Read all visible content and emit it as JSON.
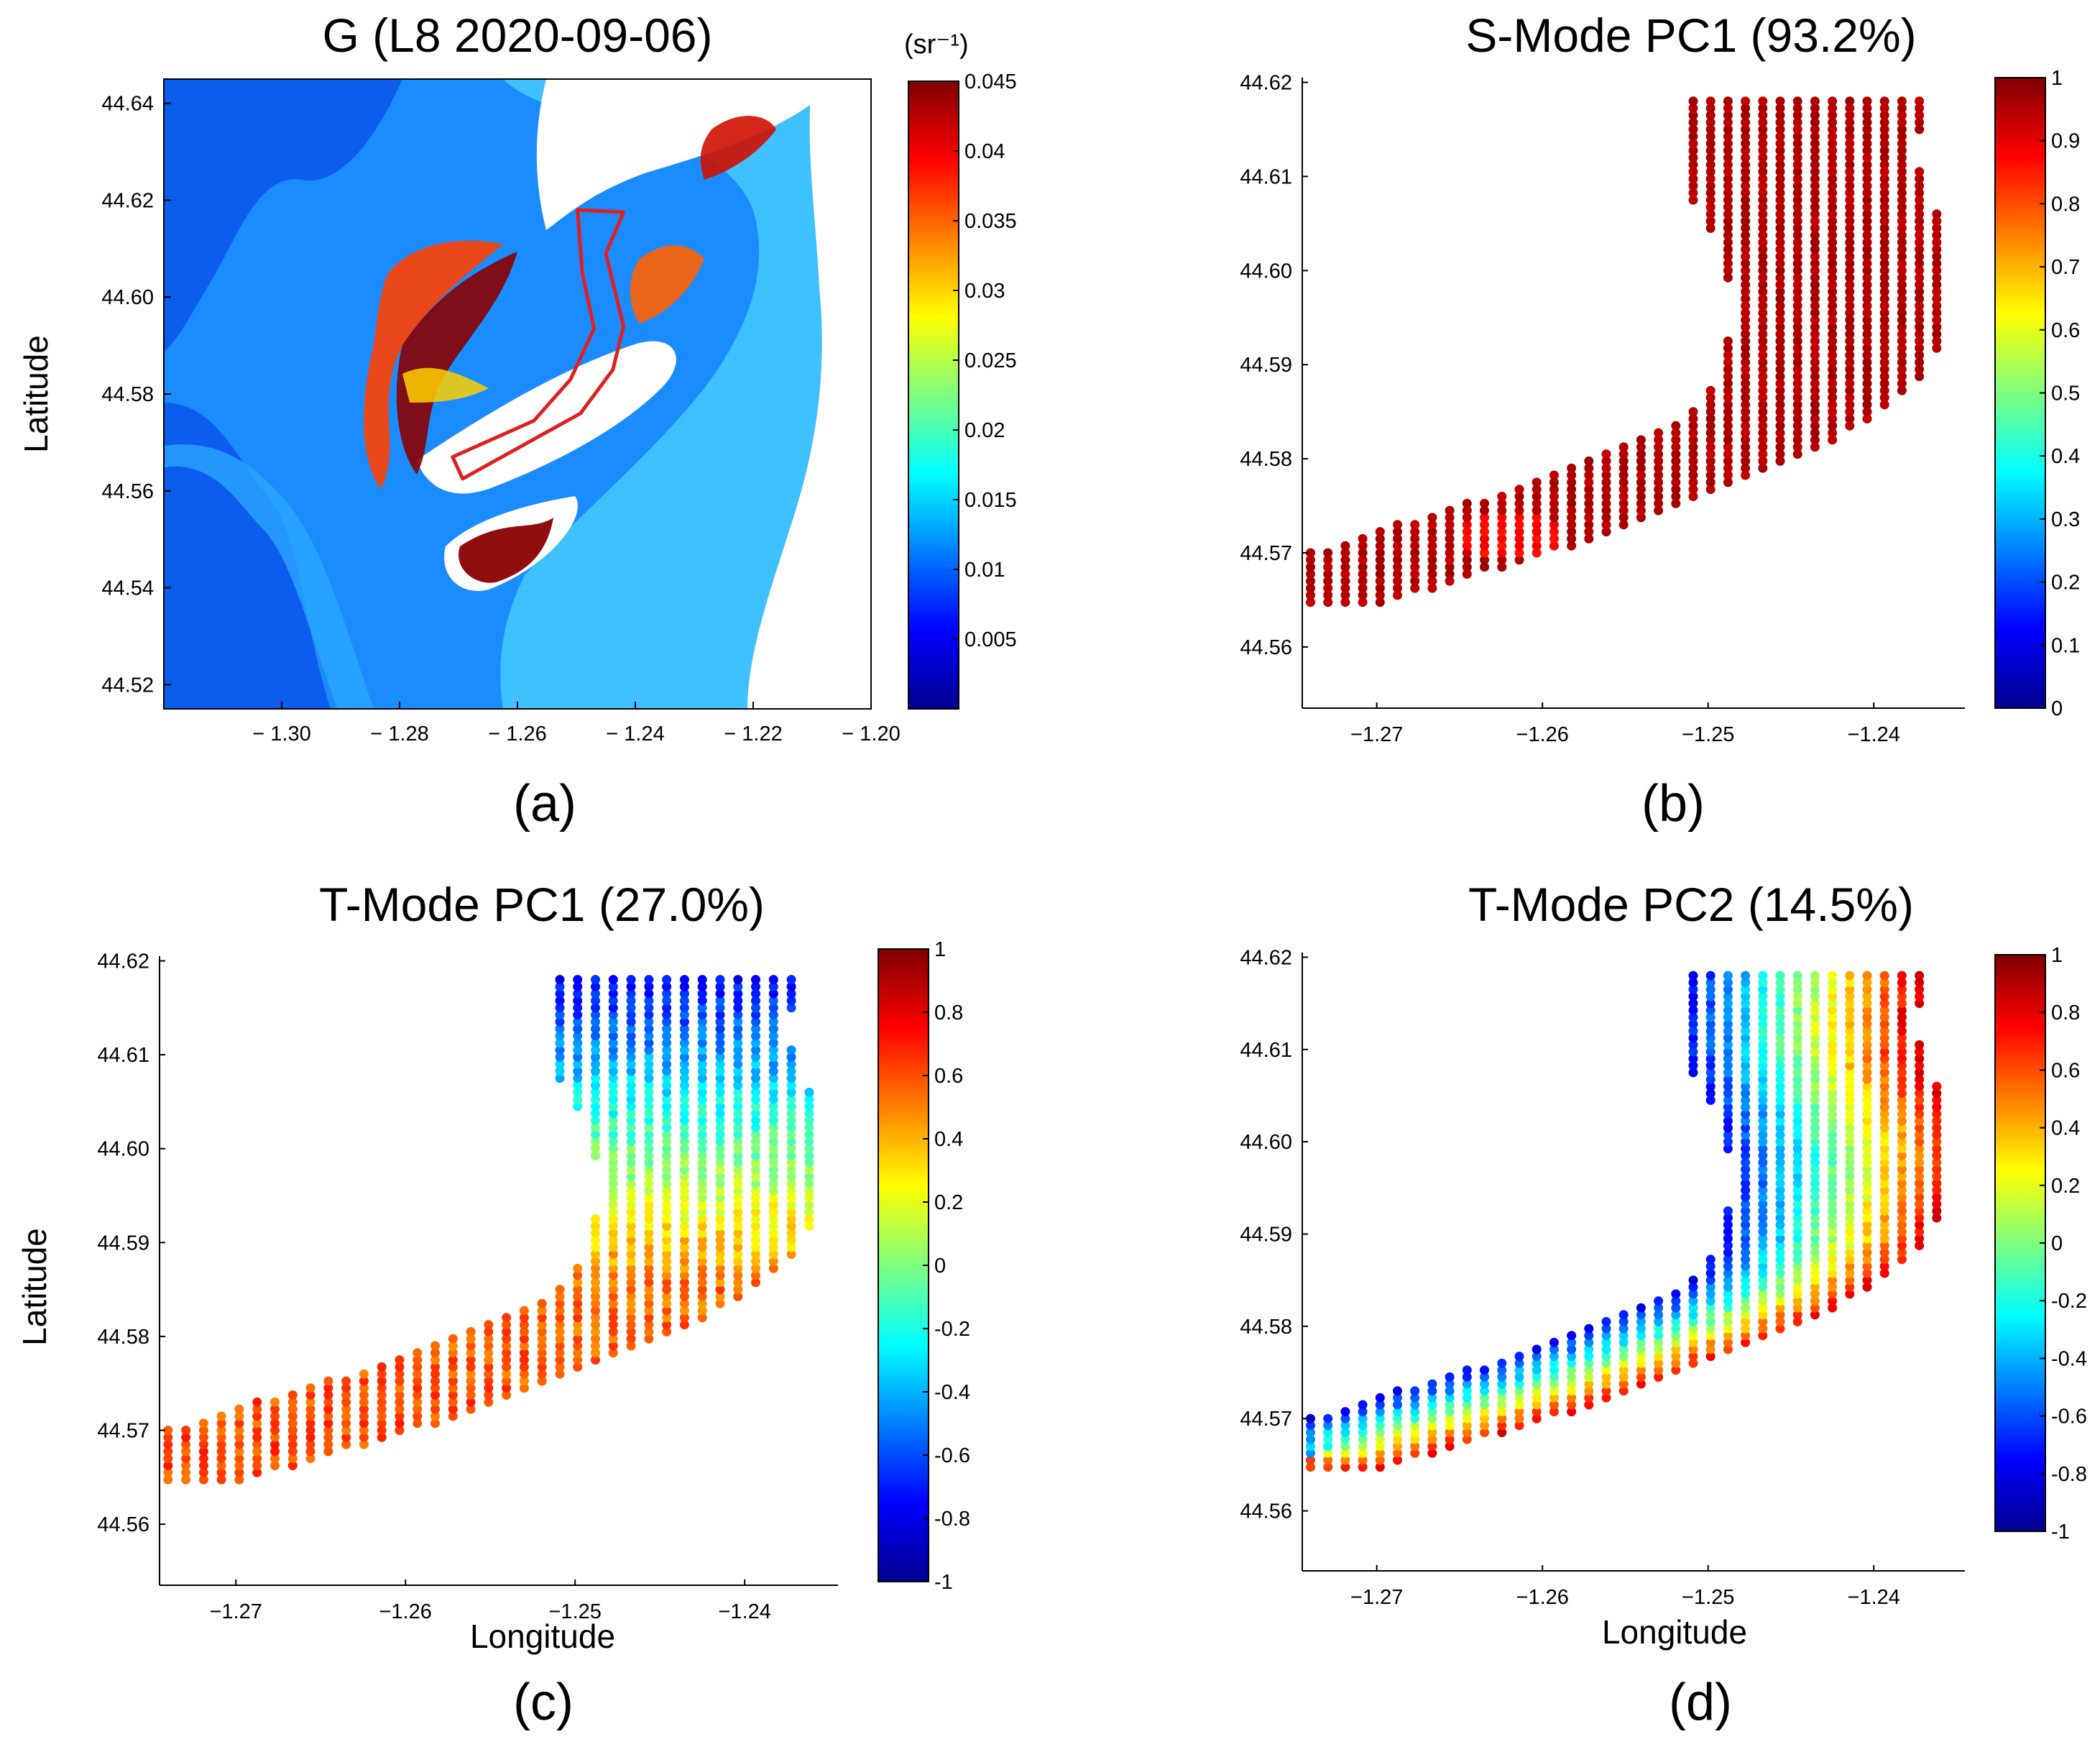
{
  "figure": {
    "panel_labels": [
      "(a)",
      "(b)",
      "(c)",
      "(d)"
    ]
  },
  "colors": {
    "jet": [
      "#00008f",
      "#0000ff",
      "#007fff",
      "#00ffff",
      "#7fff7f",
      "#ffff00",
      "#ff7f00",
      "#ff0000",
      "#7f0000"
    ],
    "outline": "#e02020"
  },
  "chart_data": [
    {
      "type": "heatmap",
      "title": "G (L8 2020-09-06)",
      "xlabel": "",
      "ylabel": "Latitude",
      "xlim": [
        -1.32,
        -1.2
      ],
      "ylim": [
        44.515,
        44.645
      ],
      "xticks": [
        -1.3,
        -1.28,
        -1.26,
        -1.24,
        -1.22,
        -1.2
      ],
      "xtick_labels": [
        "− 1.30",
        "− 1.28",
        "− 1.26",
        "− 1.24",
        "− 1.22",
        "− 1.20"
      ],
      "yticks": [
        44.52,
        44.54,
        44.56,
        44.58,
        44.6,
        44.62,
        44.64
      ],
      "ytick_labels": [
        "44.52",
        "44.54",
        "44.56",
        "44.58",
        "44.60",
        "44.62",
        "44.64"
      ],
      "colorbar": {
        "unit": "(sr⁻¹)",
        "range": [
          0.0,
          0.045
        ],
        "ticks": [
          0.005,
          0.01,
          0.015,
          0.02,
          0.025,
          0.03,
          0.035,
          0.04,
          0.045
        ],
        "tick_labels": [
          "0.005",
          "0.01",
          "0.015",
          "0.02",
          "0.025",
          "0.03",
          "0.035",
          "0.04",
          "0.045"
        ]
      },
      "region_outline": [
        [
          -1.2693,
          44.5625
        ],
        [
          -1.2493,
          44.576
        ],
        [
          -1.2438,
          44.585
        ],
        [
          -1.242,
          44.594
        ],
        [
          -1.245,
          44.609
        ],
        [
          -1.242,
          44.6175
        ],
        [
          -1.2498,
          44.618
        ],
        [
          -1.249,
          44.605
        ],
        [
          -1.247,
          44.5935
        ],
        [
          -1.251,
          44.583
        ],
        [
          -1.2572,
          44.5745
        ],
        [
          -1.271,
          44.567
        ]
      ]
    },
    {
      "type": "scatter",
      "title": "S-Mode PC1 (93.2%)",
      "xlabel": "",
      "ylabel": "",
      "xlim": [
        -1.2745,
        -1.2345
      ],
      "ylim": [
        44.5535,
        44.6205
      ],
      "xticks": [
        -1.27,
        -1.26,
        -1.25,
        -1.24
      ],
      "xtick_labels": [
        "−1.27",
        "−1.26",
        "−1.25",
        "−1.24"
      ],
      "yticks": [
        44.56,
        44.57,
        44.58,
        44.59,
        44.6,
        44.61,
        44.62
      ],
      "ytick_labels": [
        "44.56",
        "44.57",
        "44.58",
        "44.59",
        "44.60",
        "44.61",
        "44.62"
      ],
      "colorbar": {
        "range": [
          0,
          1
        ],
        "ticks": [
          0,
          0.1,
          0.2,
          0.3,
          0.4,
          0.5,
          0.6,
          0.7,
          0.8,
          0.9,
          1
        ],
        "tick_labels": [
          "0",
          "0.1",
          "0.2",
          "0.3",
          "0.4",
          "0.5",
          "0.6",
          "0.7",
          "0.8",
          "0.9",
          "1"
        ]
      },
      "value_pattern": "near-uniform ~0.95 over the whole channel, slightly lower (~0.85) near -1.262, 44.572"
    },
    {
      "type": "scatter",
      "title": "T-Mode PC1 (27.0%)",
      "xlabel": "Longitude",
      "ylabel": "Latitude",
      "xlim": [
        -1.2745,
        -1.2345
      ],
      "ylim": [
        44.5535,
        44.6205
      ],
      "xticks": [
        -1.27,
        -1.26,
        -1.25,
        -1.24
      ],
      "xtick_labels": [
        "−1.27",
        "−1.26",
        "−1.25",
        "−1.24"
      ],
      "yticks": [
        44.56,
        44.57,
        44.58,
        44.59,
        44.6,
        44.61,
        44.62
      ],
      "ytick_labels": [
        "44.56",
        "44.57",
        "44.58",
        "44.59",
        "44.60",
        "44.61",
        "44.62"
      ],
      "colorbar": {
        "range": [
          -1,
          1
        ],
        "ticks": [
          -1,
          -0.8,
          -0.6,
          -0.4,
          -0.2,
          0,
          0.2,
          0.4,
          0.6,
          0.8,
          1
        ],
        "tick_labels": [
          "-1",
          "-0.8",
          "-0.6",
          "-0.4",
          "-0.2",
          "0",
          "0.2",
          "0.4",
          "0.6",
          "0.8",
          "1"
        ]
      },
      "value_pattern": "about +0.6 in the lower diagonal arm, decreasing northward to about -0.7 at the top of the channel"
    },
    {
      "type": "scatter",
      "title": "T-Mode PC2 (14.5%)",
      "xlabel": "Longitude",
      "ylabel": "",
      "xlim": [
        -1.2745,
        -1.2345
      ],
      "ylim": [
        44.5535,
        44.6205
      ],
      "xticks": [
        -1.27,
        -1.26,
        -1.25,
        -1.24
      ],
      "xtick_labels": [
        "−1.27",
        "−1.26",
        "−1.25",
        "−1.24"
      ],
      "yticks": [
        44.56,
        44.57,
        44.58,
        44.59,
        44.6,
        44.61,
        44.62
      ],
      "ytick_labels": [
        "44.56",
        "44.57",
        "44.58",
        "44.59",
        "44.60",
        "44.61",
        "44.62"
      ],
      "colorbar": {
        "range": [
          -1,
          1
        ],
        "ticks": [
          -1,
          -0.8,
          -0.6,
          -0.4,
          -0.2,
          0,
          0.2,
          0.4,
          0.6,
          0.8,
          1
        ],
        "tick_labels": [
          "-1",
          "-0.8",
          "-0.6",
          "-0.4",
          "-0.2",
          "0",
          "0.2",
          "0.4",
          "0.6",
          "0.8",
          "1"
        ]
      },
      "value_pattern": "cross-channel gradient: about -0.7 on the north/west bank rising to about +0.7 on the south/east bank"
    }
  ]
}
